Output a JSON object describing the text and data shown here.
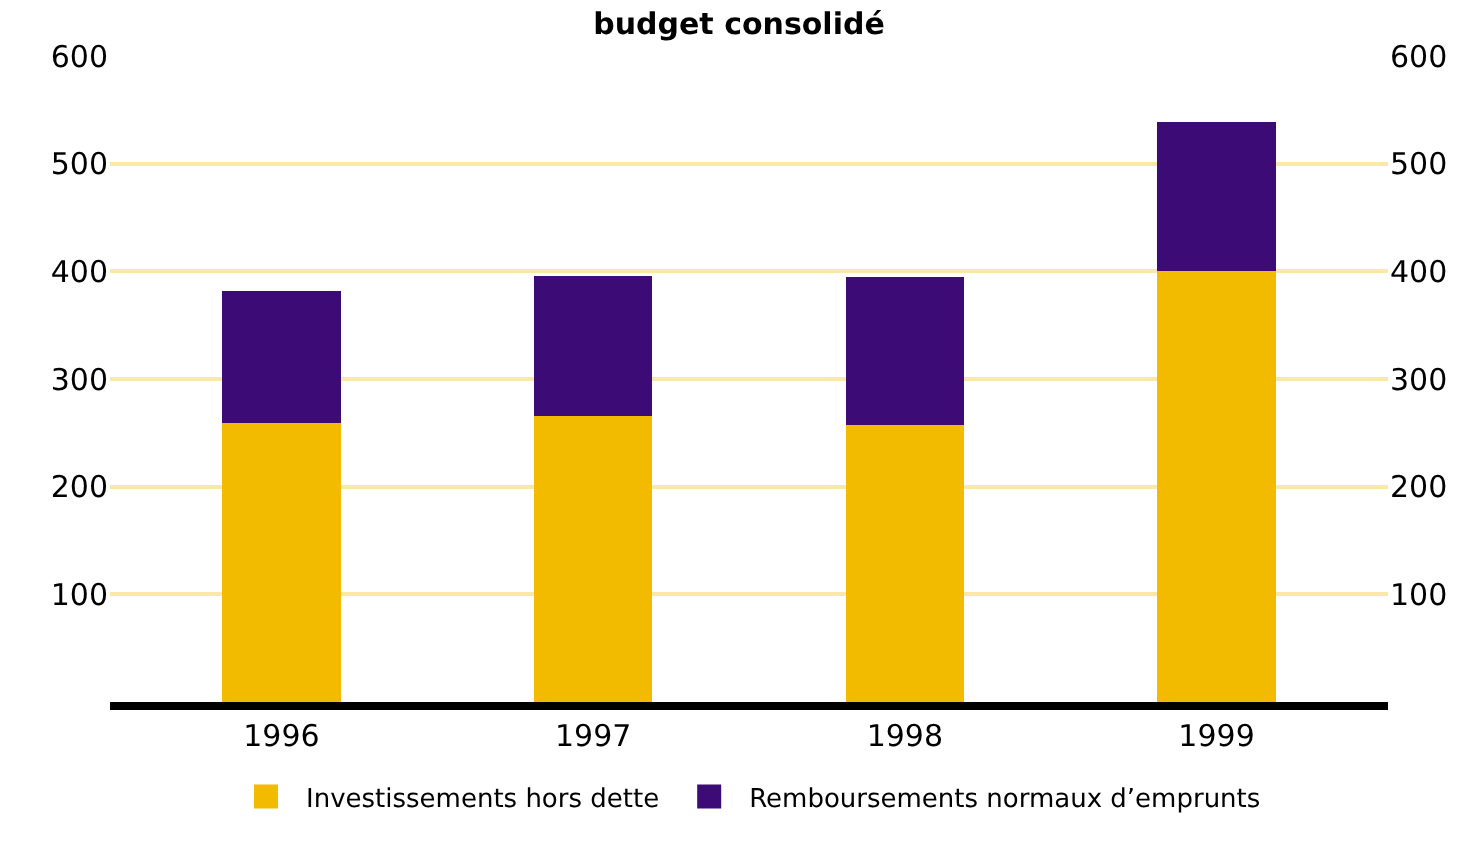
{
  "chart_data": {
    "type": "bar",
    "title": "budget consolidé",
    "stacked": true,
    "categories": [
      "1996",
      "1997",
      "1998",
      "1999"
    ],
    "series": [
      {
        "name": "Investissements hors dette",
        "color": "#f2bb00",
        "values": [
          259,
          266,
          257,
          400
        ]
      },
      {
        "name": "Remboursements normaux d’emprunts",
        "color": "#3d0b75",
        "values": [
          123,
          130,
          138,
          139
        ]
      }
    ],
    "ylim": [
      0,
      600
    ],
    "yticks": [
      100,
      200,
      300,
      400,
      500,
      600
    ],
    "y2lim": [
      0,
      600
    ],
    "y2ticks": [
      100,
      200,
      300,
      400,
      500,
      600
    ],
    "grid": "y",
    "legend": "bottom"
  }
}
